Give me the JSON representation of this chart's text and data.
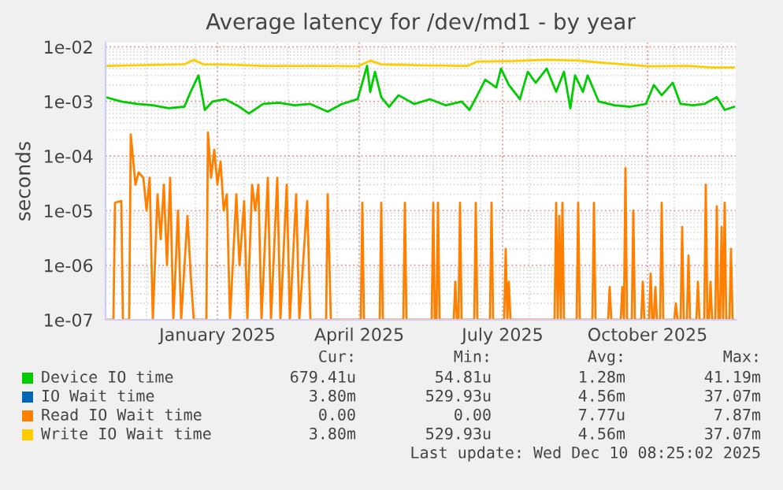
{
  "chart_data": {
    "type": "line",
    "title": "Average latency for /dev/md1 - by year",
    "ylabel": "seconds",
    "log": true,
    "grid": true,
    "legend": "bottom",
    "line_style": "solid",
    "ylim": [
      1e-07,
      0.012
    ],
    "yticks": [
      {
        "value": 1e-07,
        "label": "1e-07"
      },
      {
        "value": 1e-06,
        "label": "1e-06"
      },
      {
        "value": 1e-05,
        "label": "1e-05"
      },
      {
        "value": 0.0001,
        "label": "1e-04"
      },
      {
        "value": 0.001,
        "label": "1e-03"
      },
      {
        "value": 0.01,
        "label": "1e-02"
      }
    ],
    "xlim": [
      "2024-11-05",
      "2025-12-10"
    ],
    "xticks": [
      {
        "value": "2025-01-15",
        "label": "January 2025"
      },
      {
        "value": "2025-04-15",
        "label": "April 2025"
      },
      {
        "value": "2025-07-15",
        "label": "July 2025"
      },
      {
        "value": "2025-10-15",
        "label": "October 2025"
      }
    ],
    "series": [
      {
        "name": "Device IO time",
        "color": "#00cc00",
        "x": [
          "2024-11-05",
          "2024-11-15",
          "2024-11-25",
          "2024-12-05",
          "2024-12-15",
          "2024-12-25",
          "2024-12-29",
          "2025-01-03",
          "2025-01-07",
          "2025-01-12",
          "2025-01-20",
          "2025-01-29",
          "2025-02-04",
          "2025-02-13",
          "2025-02-23",
          "2025-03-05",
          "2025-03-15",
          "2025-03-26",
          "2025-04-04",
          "2025-04-14",
          "2025-04-20",
          "2025-04-22",
          "2025-04-25",
          "2025-04-29",
          "2025-05-04",
          "2025-05-10",
          "2025-05-20",
          "2025-05-30",
          "2025-06-09",
          "2025-06-19",
          "2025-06-24",
          "2025-06-29",
          "2025-07-04",
          "2025-07-11",
          "2025-07-14",
          "2025-07-19",
          "2025-07-26",
          "2025-07-31",
          "2025-08-05",
          "2025-08-12",
          "2025-08-18",
          "2025-08-23",
          "2025-08-27",
          "2025-08-30",
          "2025-09-04",
          "2025-09-07",
          "2025-09-14",
          "2025-09-24",
          "2025-10-04",
          "2025-10-14",
          "2025-10-19",
          "2025-10-24",
          "2025-10-31",
          "2025-11-05",
          "2025-11-13",
          "2025-11-20",
          "2025-11-28",
          "2025-12-03",
          "2025-12-09"
        ],
        "values": [
          0.0012,
          0.001,
          0.0009,
          0.00085,
          0.00075,
          0.0008,
          0.0015,
          0.003,
          0.0007,
          0.001,
          0.0011,
          0.0008,
          0.0006,
          0.0009,
          0.00095,
          0.00085,
          0.0009,
          0.00065,
          0.0009,
          0.0011,
          0.0045,
          0.0015,
          0.0035,
          0.0012,
          0.0008,
          0.0013,
          0.0009,
          0.0011,
          0.00085,
          0.001,
          0.0007,
          0.0013,
          0.0025,
          0.0018,
          0.004,
          0.002,
          0.0011,
          0.0035,
          0.0022,
          0.004,
          0.0015,
          0.0035,
          0.00075,
          0.003,
          0.0015,
          0.003,
          0.001,
          0.00085,
          0.0008,
          0.0009,
          0.002,
          0.0013,
          0.0022,
          0.0009,
          0.00085,
          0.0009,
          0.0012,
          0.0007,
          0.0008
        ]
      },
      {
        "name": "IO Wait time",
        "color": "#0066b3"
      },
      {
        "name": "Read IO Wait time",
        "color": "#ff8000",
        "x": [
          "2024-11-05",
          "2024-11-10",
          "2024-11-11",
          "2024-11-15",
          "2024-11-16",
          "2024-11-20",
          "2024-11-21",
          "2024-11-24",
          "2024-11-26",
          "2024-11-29",
          "2024-12-01",
          "2024-12-03",
          "2024-12-05",
          "2024-12-08",
          "2024-12-10",
          "2024-12-12",
          "2024-12-14",
          "2024-12-16",
          "2024-12-18",
          "2024-12-21",
          "2024-12-23",
          "2024-12-27",
          "2024-12-29",
          "2024-12-31",
          "2025-01-08",
          "2025-01-09",
          "2025-01-11",
          "2025-01-13",
          "2025-01-15",
          "2025-01-17",
          "2025-01-19",
          "2025-01-21",
          "2025-01-23",
          "2025-01-27",
          "2025-01-29",
          "2025-02-01",
          "2025-02-03",
          "2025-02-06",
          "2025-02-08",
          "2025-02-10",
          "2025-02-12",
          "2025-02-16",
          "2025-02-18",
          "2025-02-22",
          "2025-02-24",
          "2025-02-28",
          "2025-03-02",
          "2025-03-06",
          "2025-03-08",
          "2025-03-13",
          "2025-03-15",
          "2025-03-25",
          "2025-03-26",
          "2025-03-28",
          "2025-04-16",
          "2025-04-17",
          "2025-04-18",
          "2025-04-28",
          "2025-04-29",
          "2025-04-30",
          "2025-05-13",
          "2025-05-14",
          "2025-05-15",
          "2025-05-31",
          "2025-06-01",
          "2025-06-02",
          "2025-06-03",
          "2025-06-04",
          "2025-06-05",
          "2025-06-14",
          "2025-06-15",
          "2025-06-16",
          "2025-06-17",
          "2025-06-18",
          "2025-06-19",
          "2025-06-27",
          "2025-06-28",
          "2025-06-29",
          "2025-07-07",
          "2025-07-08",
          "2025-07-09",
          "2025-07-16",
          "2025-07-17",
          "2025-07-18",
          "2025-07-19",
          "2025-07-20",
          "2025-08-17",
          "2025-08-18",
          "2025-08-19",
          "2025-08-20",
          "2025-08-21",
          "2025-08-22",
          "2025-08-23",
          "2025-08-31",
          "2025-09-01",
          "2025-09-02",
          "2025-09-10",
          "2025-09-11",
          "2025-09-12",
          "2025-09-20",
          "2025-09-21",
          "2025-09-22",
          "2025-09-28",
          "2025-09-29",
          "2025-09-30",
          "2025-10-01",
          "2025-10-02",
          "2025-10-05",
          "2025-10-06",
          "2025-10-07",
          "2025-10-11",
          "2025-10-12",
          "2025-10-13",
          "2025-10-16",
          "2025-10-17",
          "2025-10-18",
          "2025-10-19",
          "2025-10-20",
          "2025-10-21",
          "2025-10-23",
          "2025-10-24",
          "2025-10-25",
          "2025-11-01",
          "2025-11-02",
          "2025-11-03",
          "2025-11-05",
          "2025-11-06",
          "2025-11-07",
          "2025-11-09",
          "2025-11-10",
          "2025-11-11",
          "2025-11-15",
          "2025-11-16",
          "2025-11-17",
          "2025-11-20",
          "2025-11-21",
          "2025-11-22",
          "2025-11-23",
          "2025-11-24",
          "2025-11-25",
          "2025-11-27",
          "2025-11-28",
          "2025-11-29",
          "2025-11-30",
          "2025-12-01",
          "2025-12-02",
          "2025-12-03",
          "2025-12-04",
          "2025-12-06",
          "2025-12-07",
          "2025-12-08",
          "2025-12-09"
        ],
        "values": [
          1e-07,
          1e-07,
          1.4e-05,
          1.5e-05,
          1e-07,
          1e-07,
          0.00025,
          3e-05,
          5e-05,
          4e-05,
          1e-05,
          4e-05,
          1e-07,
          2e-05,
          3e-06,
          3e-05,
          1e-06,
          4e-05,
          1e-07,
          1e-05,
          1e-07,
          8e-06,
          7e-07,
          1e-07,
          1e-07,
          0.00027,
          4e-05,
          0.00013,
          3e-05,
          8e-05,
          1e-05,
          2e-05,
          1e-07,
          2e-05,
          1e-06,
          1.5e-05,
          1e-07,
          3e-05,
          1e-05,
          3e-05,
          1e-07,
          4e-05,
          1e-07,
          4e-05,
          1e-07,
          3e-05,
          1e-07,
          2e-05,
          1e-07,
          1.5e-05,
          1e-07,
          1e-07,
          2e-05,
          1e-07,
          1e-07,
          1.4e-05,
          1e-07,
          1e-07,
          1.4e-05,
          1e-07,
          1e-07,
          1.4e-05,
          1e-07,
          1e-07,
          1.4e-05,
          1e-07,
          1e-07,
          1.4e-05,
          1e-07,
          1e-07,
          5e-07,
          1e-07,
          1e-07,
          1.4e-05,
          1e-07,
          1e-07,
          1.4e-05,
          1e-07,
          1e-07,
          1.4e-05,
          1e-07,
          1e-07,
          2e-06,
          1e-07,
          5e-07,
          1e-07,
          1e-07,
          1.4e-05,
          1e-07,
          8e-06,
          1e-07,
          1.4e-05,
          1e-07,
          1e-07,
          1.4e-05,
          1e-07,
          1e-07,
          1.4e-05,
          1e-07,
          1e-07,
          4e-07,
          1e-07,
          1e-07,
          4e-07,
          1e-07,
          6e-05,
          1e-07,
          1e-07,
          1e-05,
          1e-07,
          1e-07,
          5e-07,
          1e-07,
          1e-07,
          7e-07,
          1e-07,
          1e-07,
          4e-07,
          1e-07,
          1e-07,
          1.4e-05,
          1e-07,
          1e-07,
          2e-07,
          1e-07,
          1e-07,
          5e-06,
          1e-07,
          1e-07,
          1.5e-06,
          1e-07,
          1e-07,
          5e-07,
          1e-07,
          1e-07,
          3e-05,
          1e-07,
          1e-07,
          5e-07,
          1e-07,
          1e-07,
          1.2e-05,
          1e-07,
          1e-07,
          5e-06,
          1e-07,
          1.4e-05,
          1e-07,
          1e-07,
          2e-06,
          1e-07,
          1e-07
        ]
      },
      {
        "name": "Write IO Wait time",
        "color": "#ffcc00",
        "x": [
          "2024-11-05",
          "2024-12-25",
          "2024-12-31",
          "2025-01-06",
          "2025-01-24",
          "2025-02-13",
          "2025-03-25",
          "2025-04-14",
          "2025-04-22",
          "2025-04-29",
          "2025-05-24",
          "2025-06-23",
          "2025-06-29",
          "2025-07-23",
          "2025-08-12",
          "2025-09-01",
          "2025-09-21",
          "2025-10-16",
          "2025-11-10",
          "2025-11-25",
          "2025-12-09"
        ],
        "values": [
          0.0045,
          0.0048,
          0.0058,
          0.0048,
          0.0047,
          0.0045,
          0.0045,
          0.0044,
          0.0056,
          0.0048,
          0.0046,
          0.0045,
          0.0054,
          0.0055,
          0.0058,
          0.0056,
          0.005,
          0.0044,
          0.0045,
          0.0042,
          0.0042
        ]
      }
    ],
    "annotations": [
      "Cur:",
      "Min:",
      "Avg:",
      "Max:",
      "679.41u",
      "54.81u",
      "1.28m",
      "41.19m",
      "3.80m",
      "529.93u",
      "4.56m",
      "37.07m",
      "0.00",
      "0.00",
      "7.77u",
      "7.87m",
      "3.80m",
      "529.93u",
      "4.56m",
      "37.07m",
      "Last update: Wed Dec 10 08:25:02 2025"
    ]
  }
}
